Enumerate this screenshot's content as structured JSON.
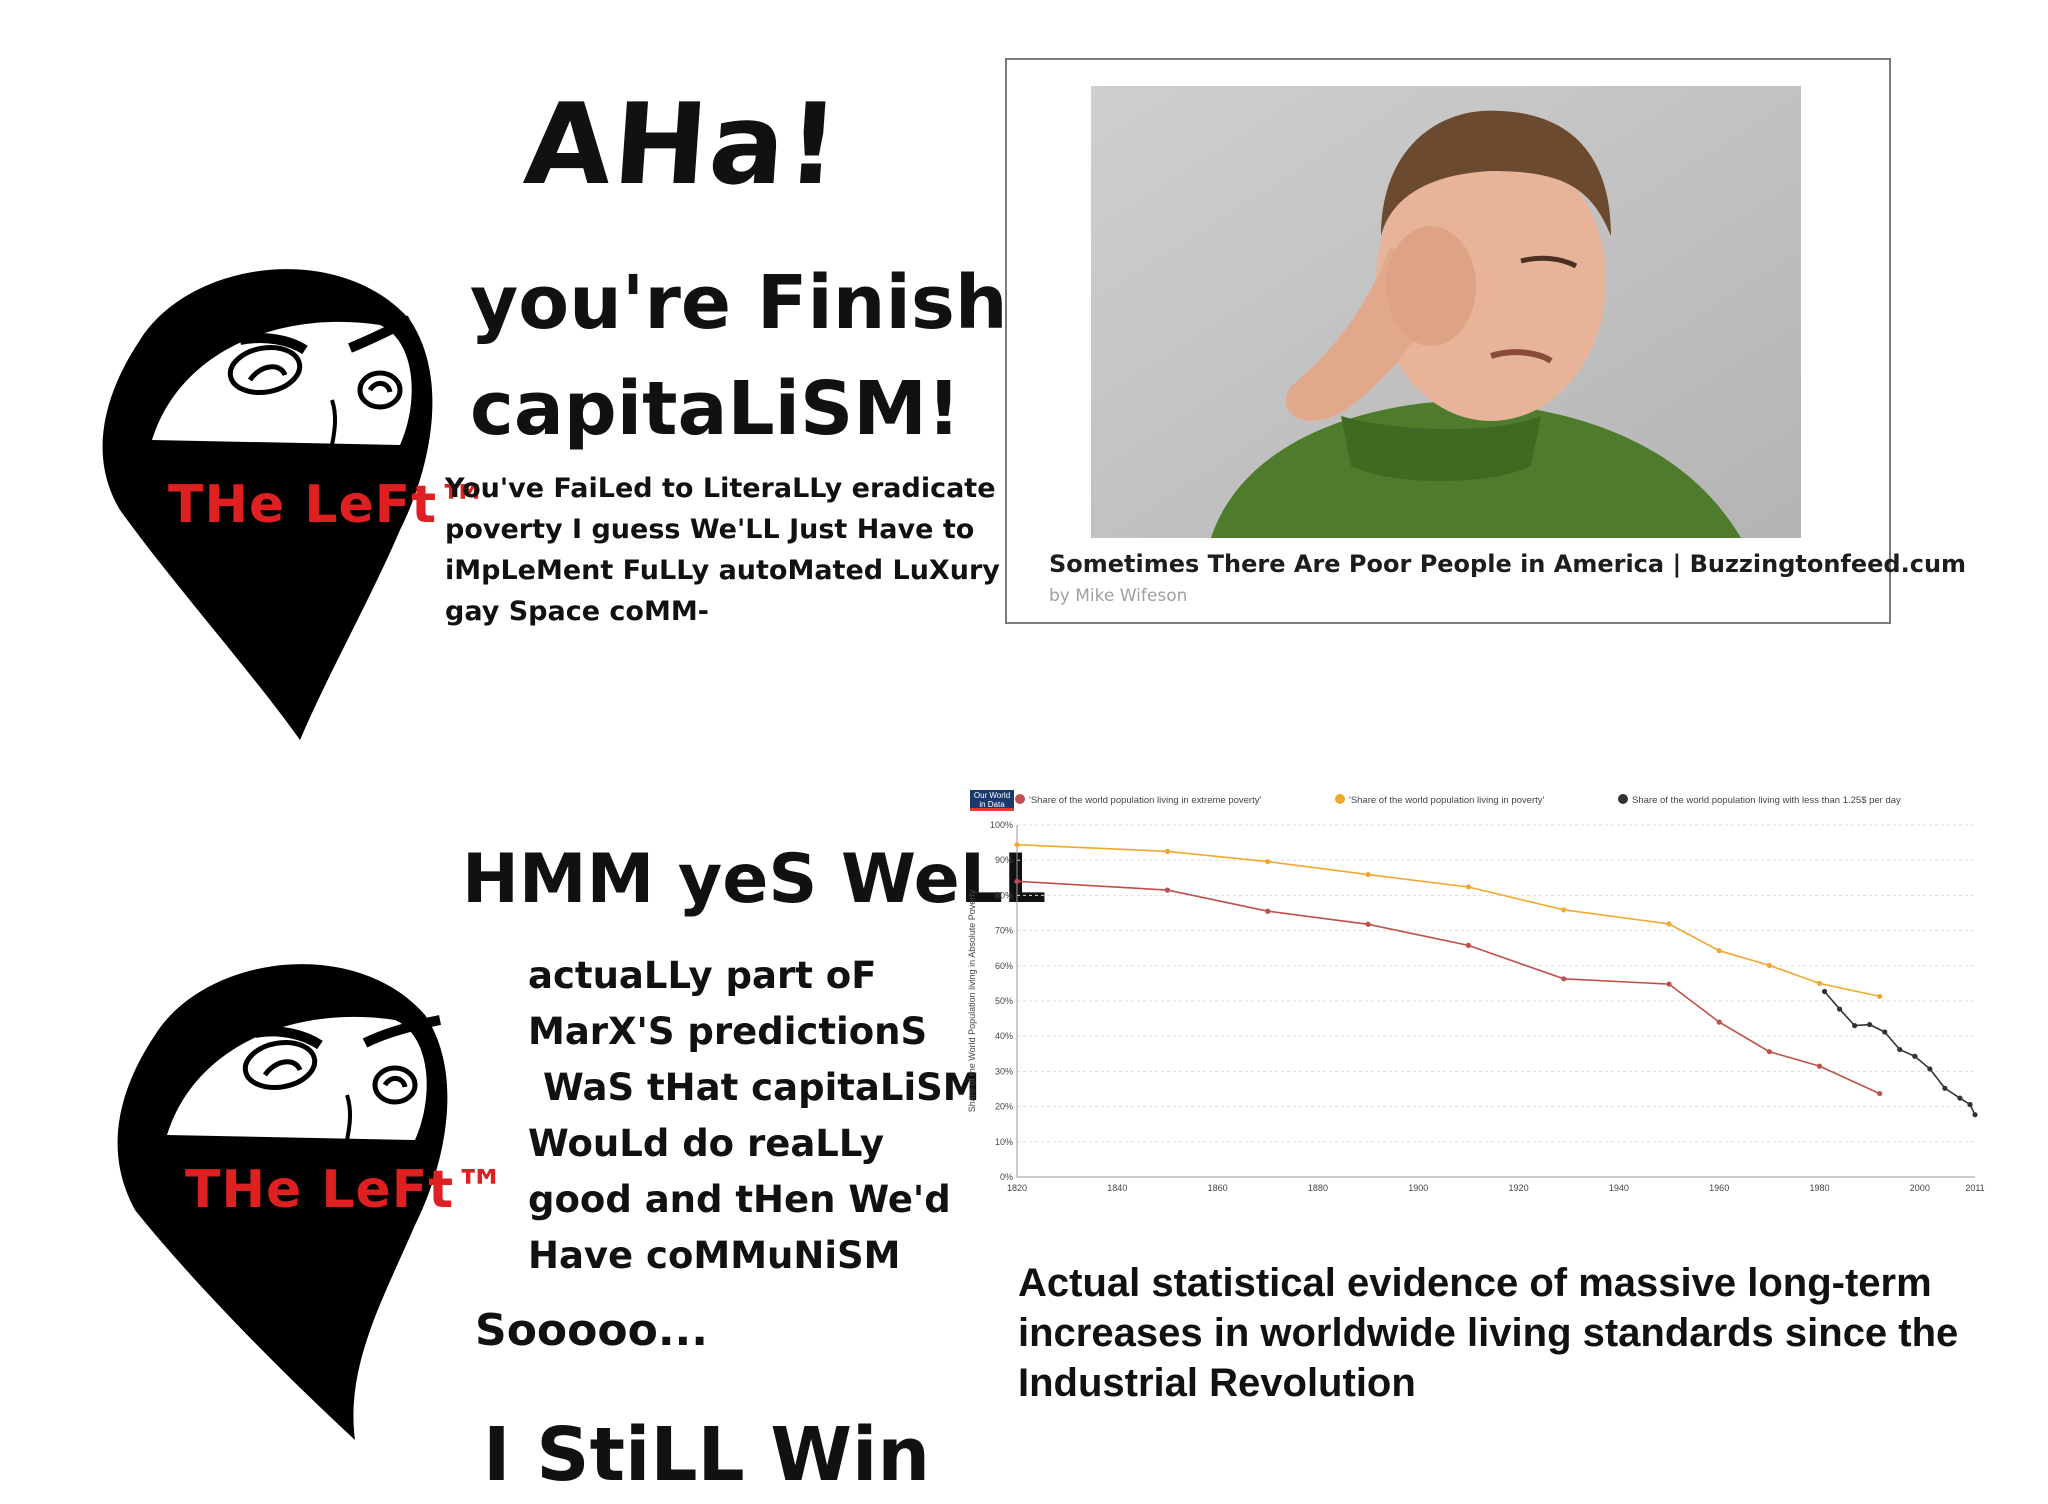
{
  "panel1": {
    "aha": "AHa!",
    "finished_line1": "you're Finished,",
    "finished_line2": "capitaLiSM!",
    "failed_text": "You've FaiLed to LiteraLLy eradicate poverty I guess We'LL Just Have to iMpLeMent FuLLy autoMated LuXury gay Space coMM-",
    "label": "THe LeFt™"
  },
  "article": {
    "title": "Sometimes There Are Poor People in America | Buzzingtonfeed.cum",
    "byline": "by Mike Wifeson"
  },
  "panel2": {
    "hmm": "HMM yeS WeLL",
    "marx_lines": [
      "actuaLLy part oF",
      "MarX'S predictionS",
      "WaS tHat capitaLiSM",
      "WouLd do reaLLy",
      "good and tHen We'd",
      "Have coMMuNiSM"
    ],
    "soooo": "Sooooo...",
    "win": "I StiLL Win",
    "label": "THe LeFt™"
  },
  "caption": "Actual statistical evidence of massive long-term increases in worldwide living standards since the Industrial Revolution",
  "colors": {
    "extreme": "#c0504d",
    "poverty": "#f0a830",
    "under125": "#333333",
    "label_red": "#e02020"
  },
  "chart_data": {
    "type": "line",
    "logo": [
      "Our World",
      "in Data"
    ],
    "ylabel": "Share of the World Population living in Absolute Poverty",
    "xlabel": "",
    "y_ticks": [
      "0%",
      "10%",
      "20%",
      "30%",
      "40%",
      "50%",
      "60%",
      "70%",
      "80%",
      "90%",
      "100%"
    ],
    "x_ticks": [
      "1820",
      "1840",
      "1860",
      "1880",
      "1900",
      "1920",
      "1940",
      "1960",
      "1980",
      "2000",
      "2011"
    ],
    "xlim": [
      1820,
      2011
    ],
    "ylim": [
      0,
      100
    ],
    "grid": true,
    "legend_position": "top",
    "series": [
      {
        "name": "'Share of the world population living in extreme poverty'",
        "color": "#c0504d",
        "x": [
          1820,
          1850,
          1870,
          1890,
          1910,
          1929,
          1950,
          1960,
          1970,
          1980,
          1992
        ],
        "y": [
          84,
          81.5,
          75.5,
          71.8,
          65.8,
          56.3,
          54.8,
          44,
          35.6,
          31.5,
          23.7
        ]
      },
      {
        "name": "'Share of the world population living in poverty'",
        "color": "#f0a830",
        "x": [
          1820,
          1850,
          1870,
          1890,
          1910,
          1929,
          1950,
          1960,
          1970,
          1980,
          1992
        ],
        "y": [
          94.4,
          92.5,
          89.6,
          85.9,
          82.4,
          75.9,
          71.9,
          64.3,
          60.1,
          55,
          51.3
        ]
      },
      {
        "name": "Share of the world population living with less than 1.25$ per day",
        "color": "#333333",
        "x": [
          1981,
          1984,
          1987,
          1990,
          1993,
          1996,
          1999,
          2002,
          2005,
          2008,
          2010,
          2011
        ],
        "y": [
          52.7,
          47.7,
          43,
          43.3,
          41.2,
          36.2,
          34.3,
          30.7,
          25.2,
          22.4,
          20.6,
          17.7
        ]
      }
    ]
  }
}
